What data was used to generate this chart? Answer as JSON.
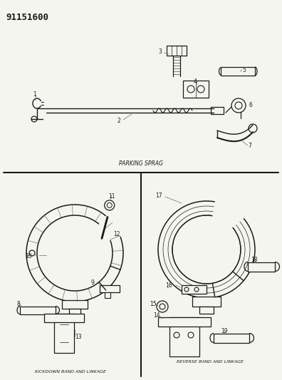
{
  "title_number": "91151600",
  "bg_color": "#f5f5f0",
  "line_color": "#1a1a1a",
  "section1_label": "PARKING SPRAG",
  "section2_label": "KICKDOWN BAND AND LINKAGE",
  "section3_label": "REVERSE BAND AND LINKAGE"
}
